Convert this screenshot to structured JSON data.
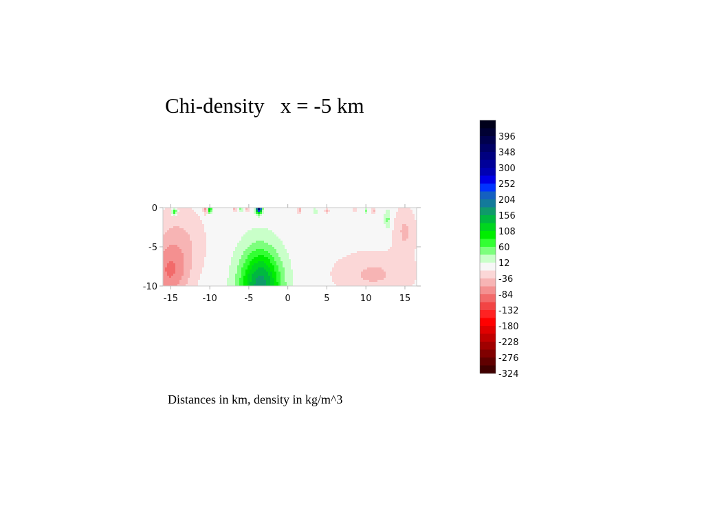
{
  "title": "Chi-density   x = -5 km",
  "caption": "Distances in km, density in kg/m^3",
  "chart_data": {
    "type": "heatmap",
    "title": "Chi-density   x = -5 km",
    "xlabel": "",
    "ylabel": "",
    "xlim": [
      -16,
      16.5
    ],
    "ylim": [
      -10,
      0
    ],
    "xticks": [
      -15,
      -10,
      -5,
      0,
      5,
      10,
      15
    ],
    "yticks": [
      0,
      -5,
      -10
    ],
    "anomalies": [
      {
        "x": -3.5,
        "y": -10,
        "sx": 2.6,
        "sy": 4.6,
        "value": 170
      },
      {
        "x": -3.7,
        "y": 0,
        "sx": 0.35,
        "sy": 0.6,
        "value": 380
      },
      {
        "x": -10.0,
        "y": 0,
        "sx": 0.25,
        "sy": 0.6,
        "value": 150
      },
      {
        "x": -14.5,
        "y": -0.5,
        "sx": 0.3,
        "sy": 0.4,
        "value": 110
      },
      {
        "x": -6.0,
        "y": 0,
        "sx": 0.2,
        "sy": 0.5,
        "value": 70
      },
      {
        "x": 12.8,
        "y": -1.5,
        "sx": 0.4,
        "sy": 1.1,
        "value": 45
      },
      {
        "x": 10.0,
        "y": -0.3,
        "sx": 0.2,
        "sy": 0.4,
        "value": 40
      },
      {
        "x": 3.5,
        "y": -0.5,
        "sx": 0.2,
        "sy": 0.4,
        "value": 35
      },
      {
        "x": -15.2,
        "y": -8.5,
        "sx": 2.4,
        "sy": 3.6,
        "value": -70
      },
      {
        "x": -14.0,
        "y": -4.5,
        "sx": 3.2,
        "sy": 4.6,
        "value": -40
      },
      {
        "x": 11.0,
        "y": -8.5,
        "sx": 5.0,
        "sy": 2.8,
        "value": -40
      },
      {
        "x": 15.0,
        "y": -3.0,
        "sx": 1.4,
        "sy": 3.0,
        "value": -40
      },
      {
        "x": -10.5,
        "y": 0,
        "sx": 0.25,
        "sy": 0.6,
        "value": -90
      },
      {
        "x": -6.8,
        "y": 0,
        "sx": 0.2,
        "sy": 0.5,
        "value": -70
      },
      {
        "x": -5.2,
        "y": 0,
        "sx": 0.2,
        "sy": 0.5,
        "value": -60
      },
      {
        "x": 1.5,
        "y": -0.3,
        "sx": 0.25,
        "sy": 0.4,
        "value": -50
      },
      {
        "x": 5.0,
        "y": -0.4,
        "sx": 0.25,
        "sy": 0.4,
        "value": -40
      },
      {
        "x": 8.5,
        "y": -0.3,
        "sx": 0.25,
        "sy": 0.3,
        "value": -40
      },
      {
        "x": 11.0,
        "y": -0.4,
        "sx": 0.3,
        "sy": 0.4,
        "value": -40
      }
    ],
    "colorbar": {
      "labels": [
        "396",
        "348",
        "300",
        "252",
        "204",
        "156",
        "108",
        "60",
        "12",
        "-36",
        "-84",
        "-132",
        "-180",
        "-228",
        "-276",
        "-324"
      ],
      "levels": [
        {
          "min": 420,
          "color": "#00001a"
        },
        {
          "min": 396,
          "color": "#000033"
        },
        {
          "min": 372,
          "color": "#00004d"
        },
        {
          "min": 348,
          "color": "#000066"
        },
        {
          "min": 324,
          "color": "#000080"
        },
        {
          "min": 300,
          "color": "#000099"
        },
        {
          "min": 276,
          "color": "#0000b3"
        },
        {
          "min": 252,
          "color": "#0000e6"
        },
        {
          "min": 228,
          "color": "#0033ff"
        },
        {
          "min": 204,
          "color": "#1460c0"
        },
        {
          "min": 180,
          "color": "#137a9a"
        },
        {
          "min": 156,
          "color": "#0f9a6a"
        },
        {
          "min": 132,
          "color": "#00b840"
        },
        {
          "min": 108,
          "color": "#00d61f"
        },
        {
          "min": 84,
          "color": "#00ee00"
        },
        {
          "min": 60,
          "color": "#33ff33"
        },
        {
          "min": 36,
          "color": "#7dff7d"
        },
        {
          "min": 12,
          "color": "#c9ffc9"
        },
        {
          "min": -12,
          "color": "#f7f7f7"
        },
        {
          "min": -36,
          "color": "#fbd7d7"
        },
        {
          "min": -60,
          "color": "#f7b4b4"
        },
        {
          "min": -84,
          "color": "#f49090"
        },
        {
          "min": -108,
          "color": "#f26a6a"
        },
        {
          "min": -132,
          "color": "#f24444"
        },
        {
          "min": -156,
          "color": "#ff2222"
        },
        {
          "min": -180,
          "color": "#ff0000"
        },
        {
          "min": -204,
          "color": "#e00000"
        },
        {
          "min": -228,
          "color": "#c00000"
        },
        {
          "min": -252,
          "color": "#a00000"
        },
        {
          "min": -276,
          "color": "#800000"
        },
        {
          "min": -300,
          "color": "#600000"
        },
        {
          "min": -9999,
          "color": "#400000"
        }
      ]
    }
  }
}
